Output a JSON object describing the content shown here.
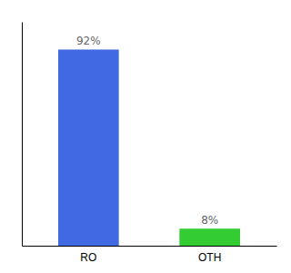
{
  "chart_data": {
    "type": "bar",
    "categories": [
      "RO",
      "OTH"
    ],
    "values": [
      92,
      8
    ],
    "value_labels": [
      "92%",
      "8%"
    ],
    "colors": [
      "#4169E1",
      "#33CC33"
    ],
    "ylim": [
      0,
      105
    ],
    "data_labels": true,
    "tick_labels": "x",
    "grid": false
  }
}
